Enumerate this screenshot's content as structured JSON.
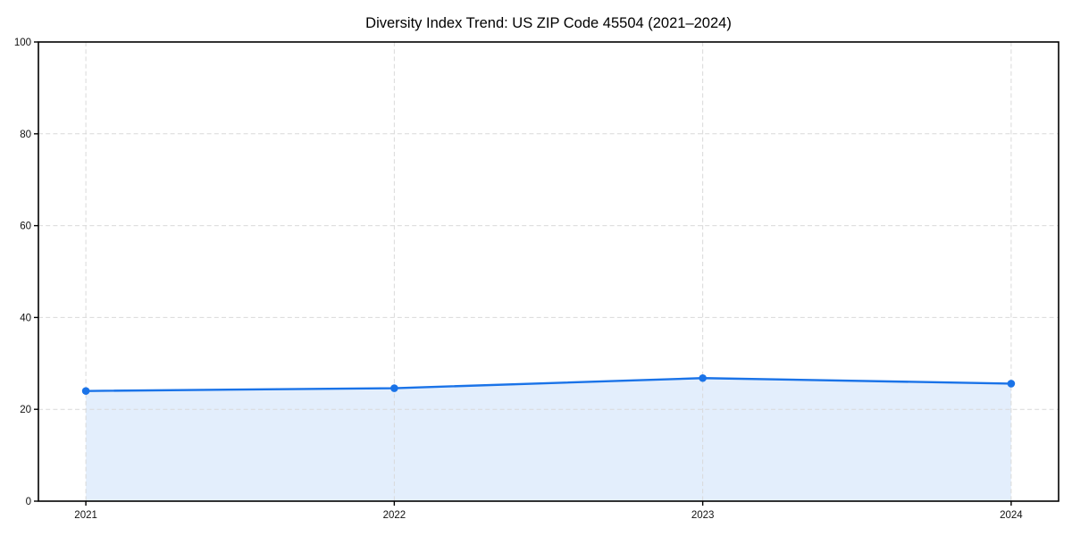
{
  "figure": {
    "background": "#ffffff"
  },
  "chart_data": {
    "type": "area",
    "title": "Diversity Index Trend: US ZIP Code 45504 (2021–2024)",
    "x": [
      "2021",
      "2022",
      "2023",
      "2024"
    ],
    "values": [
      24.0,
      24.6,
      26.8,
      25.6
    ],
    "series_name": "Diversity Index",
    "xlabel": "",
    "ylabel": "",
    "ylim": [
      0,
      100
    ],
    "yticks": [
      0,
      20,
      40,
      60,
      80,
      100
    ],
    "grid": "dashed-both",
    "legend": "none",
    "marker": "circle",
    "colors": {
      "line": "#1a73e8",
      "marker": "#1a73e8",
      "fill": "#1a73e8",
      "fill_opacity": 0.12,
      "grid": "#d9d9d9",
      "axis": "#000000",
      "text": "#111111",
      "background": "#ffffff"
    }
  }
}
